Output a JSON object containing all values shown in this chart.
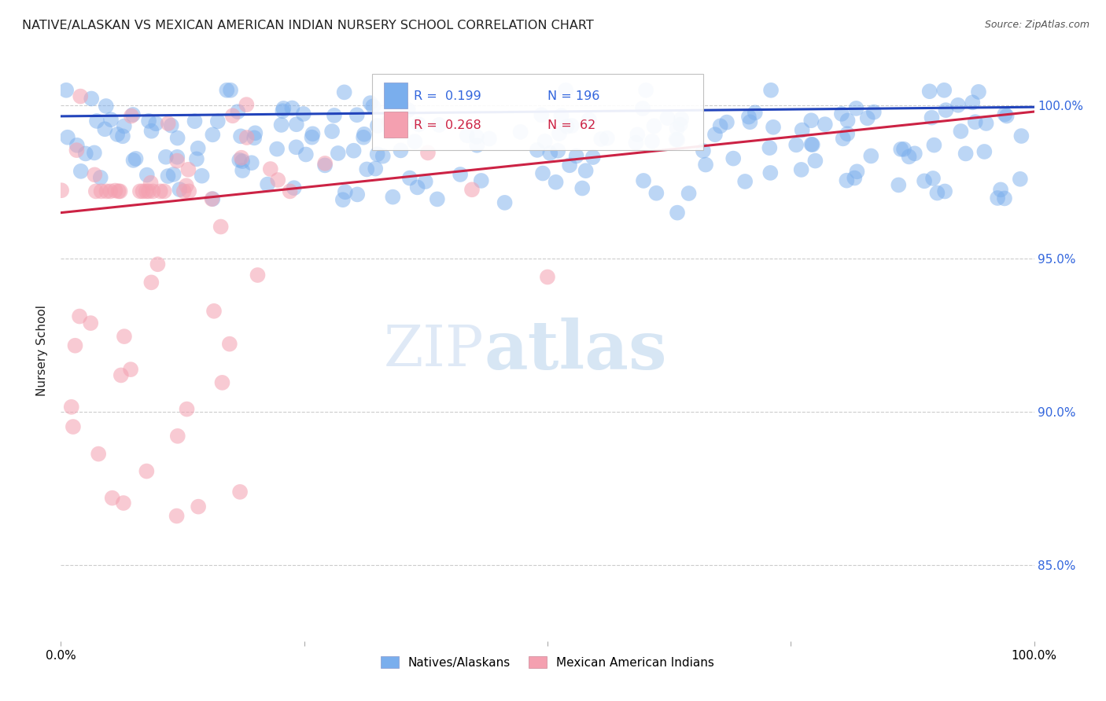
{
  "title": "NATIVE/ALASKAN VS MEXICAN AMERICAN INDIAN NURSERY SCHOOL CORRELATION CHART",
  "source": "Source: ZipAtlas.com",
  "ylabel": "Nursery School",
  "legend_label_blue": "Natives/Alaskans",
  "legend_label_pink": "Mexican American Indians",
  "R_blue": 0.199,
  "N_blue": 196,
  "R_pink": 0.268,
  "N_pink": 62,
  "ytick_labels": [
    "100.0%",
    "95.0%",
    "90.0%",
    "85.0%"
  ],
  "ytick_values": [
    1.0,
    0.95,
    0.9,
    0.85
  ],
  "xlim": [
    0.0,
    1.0
  ],
  "ylim": [
    0.825,
    1.015
  ],
  "blue_color": "#7aaeed",
  "pink_color": "#f4a0b0",
  "blue_line_color": "#2244bb",
  "pink_line_color": "#cc2244",
  "grid_color": "#cccccc",
  "title_color": "#222222",
  "right_tick_color": "#3366dd",
  "background_color": "#ffffff",
  "blue_line_y0": 0.9965,
  "blue_line_y1": 0.9995,
  "pink_line_y0": 0.965,
  "pink_line_y1": 0.998
}
